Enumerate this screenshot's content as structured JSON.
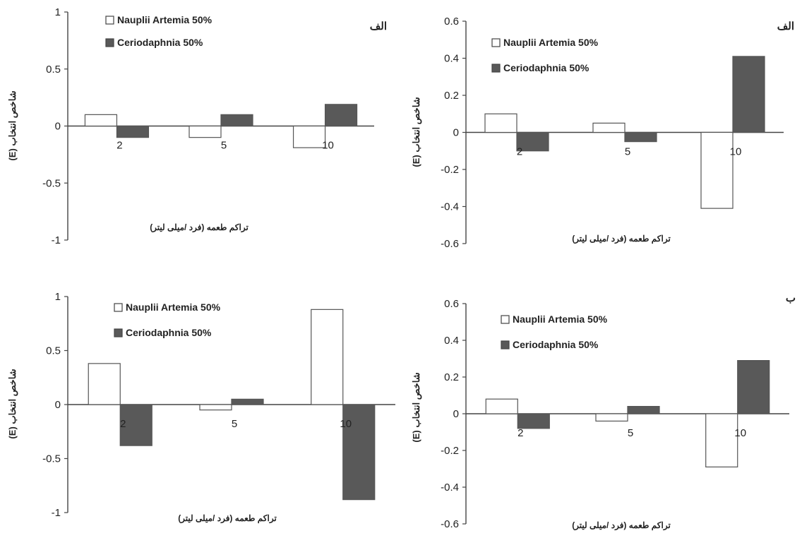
{
  "chart_data": [
    {
      "type": "bar",
      "panel_label": "الف",
      "categories": [
        "2",
        "5",
        "10"
      ],
      "series": [
        {
          "name": "Nauplii Artemia 50%",
          "values": [
            0.1,
            -0.1,
            -0.19
          ],
          "color": "#ffffff"
        },
        {
          "name": "Ceriodaphnia 50%",
          "values": [
            -0.1,
            0.1,
            0.19
          ],
          "color": "#595959"
        }
      ],
      "ylim": [
        -1,
        1
      ],
      "yticks": [
        "-1",
        "-0.5",
        "0",
        "0.5",
        "1"
      ],
      "ylabel": "شاخص انتخاب (E)",
      "xlabel": "تراکم طعمه (فرد /میلی لیتر)",
      "grid": false,
      "legend_position": "top-left"
    },
    {
      "type": "bar",
      "panel_label": "الف",
      "categories": [
        "2",
        "5",
        "10"
      ],
      "series": [
        {
          "name": "Nauplii Artemia 50%",
          "values": [
            0.1,
            0.05,
            -0.41
          ],
          "color": "#ffffff"
        },
        {
          "name": "Ceriodaphnia 50%",
          "values": [
            -0.1,
            -0.05,
            0.41
          ],
          "color": "#595959"
        }
      ],
      "ylim": [
        -0.6,
        0.6
      ],
      "yticks": [
        "-0.6",
        "-0.4",
        "-0.2",
        "0",
        "0.2",
        "0.4",
        "0.6"
      ],
      "ylabel": "شاخص انتخاب (E)",
      "xlabel": "تراکم طعمه (فرد /میلی لیتر)",
      "grid": false,
      "legend_position": "top-left"
    },
    {
      "type": "bar",
      "panel_label": "",
      "categories": [
        "2",
        "5",
        "10"
      ],
      "series": [
        {
          "name": "Nauplii Artemia 50%",
          "values": [
            0.38,
            -0.05,
            0.88
          ],
          "color": "#ffffff"
        },
        {
          "name": "Ceriodaphnia 50%",
          "values": [
            -0.38,
            0.05,
            -0.88
          ],
          "color": "#595959"
        }
      ],
      "ylim": [
        -1,
        1
      ],
      "yticks": [
        "-1",
        "-0.5",
        "0",
        "0.5",
        "1"
      ],
      "ylabel": "شاخص انتخاب (E)",
      "xlabel": "تراکم طعمه (فرد /میلی لیتر)",
      "grid": false,
      "legend_position": "top-left"
    },
    {
      "type": "bar",
      "panel_label": "ب",
      "categories": [
        "2",
        "5",
        "10"
      ],
      "series": [
        {
          "name": "Nauplii Artemia 50%",
          "values": [
            0.08,
            -0.04,
            -0.29
          ],
          "color": "#ffffff"
        },
        {
          "name": "Ceriodaphnia 50%",
          "values": [
            -0.08,
            0.04,
            0.29
          ],
          "color": "#595959"
        }
      ],
      "ylim": [
        -0.6,
        0.6
      ],
      "yticks": [
        "-0.6",
        "-0.4",
        "-0.2",
        "0",
        "0.2",
        "0.4",
        "0.6"
      ],
      "ylabel": "شاخص انتخاب (E)",
      "xlabel": "تراکم طعمه (فرد /میلی لیتر)",
      "grid": false,
      "legend_position": "top-left"
    }
  ]
}
